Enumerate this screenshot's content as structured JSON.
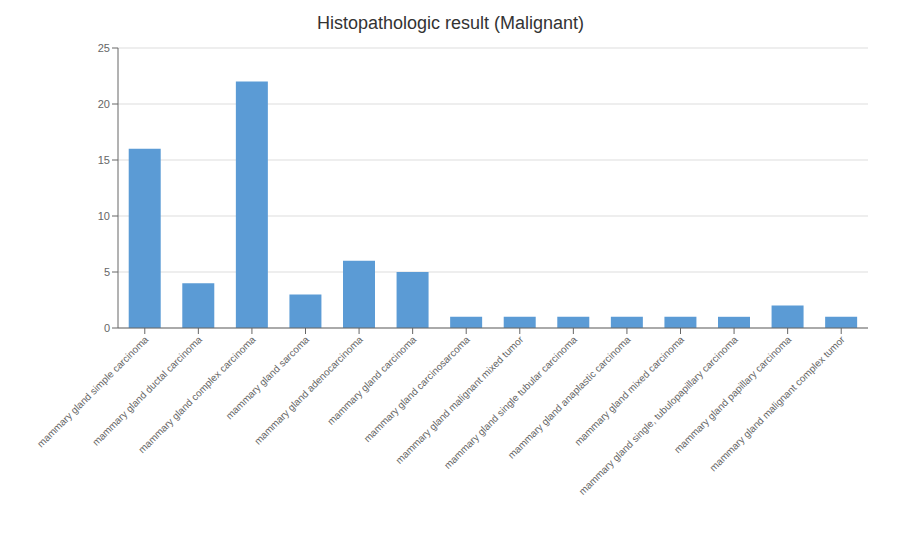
{
  "chart_data": {
    "type": "bar",
    "title": "Histopathologic result (Malignant)",
    "categories": [
      "mammary gland simple carcinoma",
      "mammary gland ductal carcinoma",
      "mammary gland complex carcinoma",
      "mammary gland sarcoma",
      "mammary gland adenocarcinoma",
      "mammary gland carcinoma",
      "mammary gland carcinosarcoma",
      "mammary gland malignant mixed tumor",
      "mammary gland single tubular carcinoma",
      "mammary gland anaplastic carcinoma",
      "mammary gland mixed carcinoma",
      "mammary gland single, tubulopapillary carcinoma",
      "mammary gland papillary carcinoma",
      "mammary gland malignant complex tumor"
    ],
    "values": [
      16,
      4,
      22,
      3,
      6,
      5,
      1,
      1,
      1,
      1,
      1,
      1,
      2,
      1
    ],
    "color": "#5B9BD5",
    "ylim": [
      0,
      25
    ],
    "yticks": [
      0,
      5,
      10,
      15,
      20,
      25
    ],
    "grid": true
  }
}
